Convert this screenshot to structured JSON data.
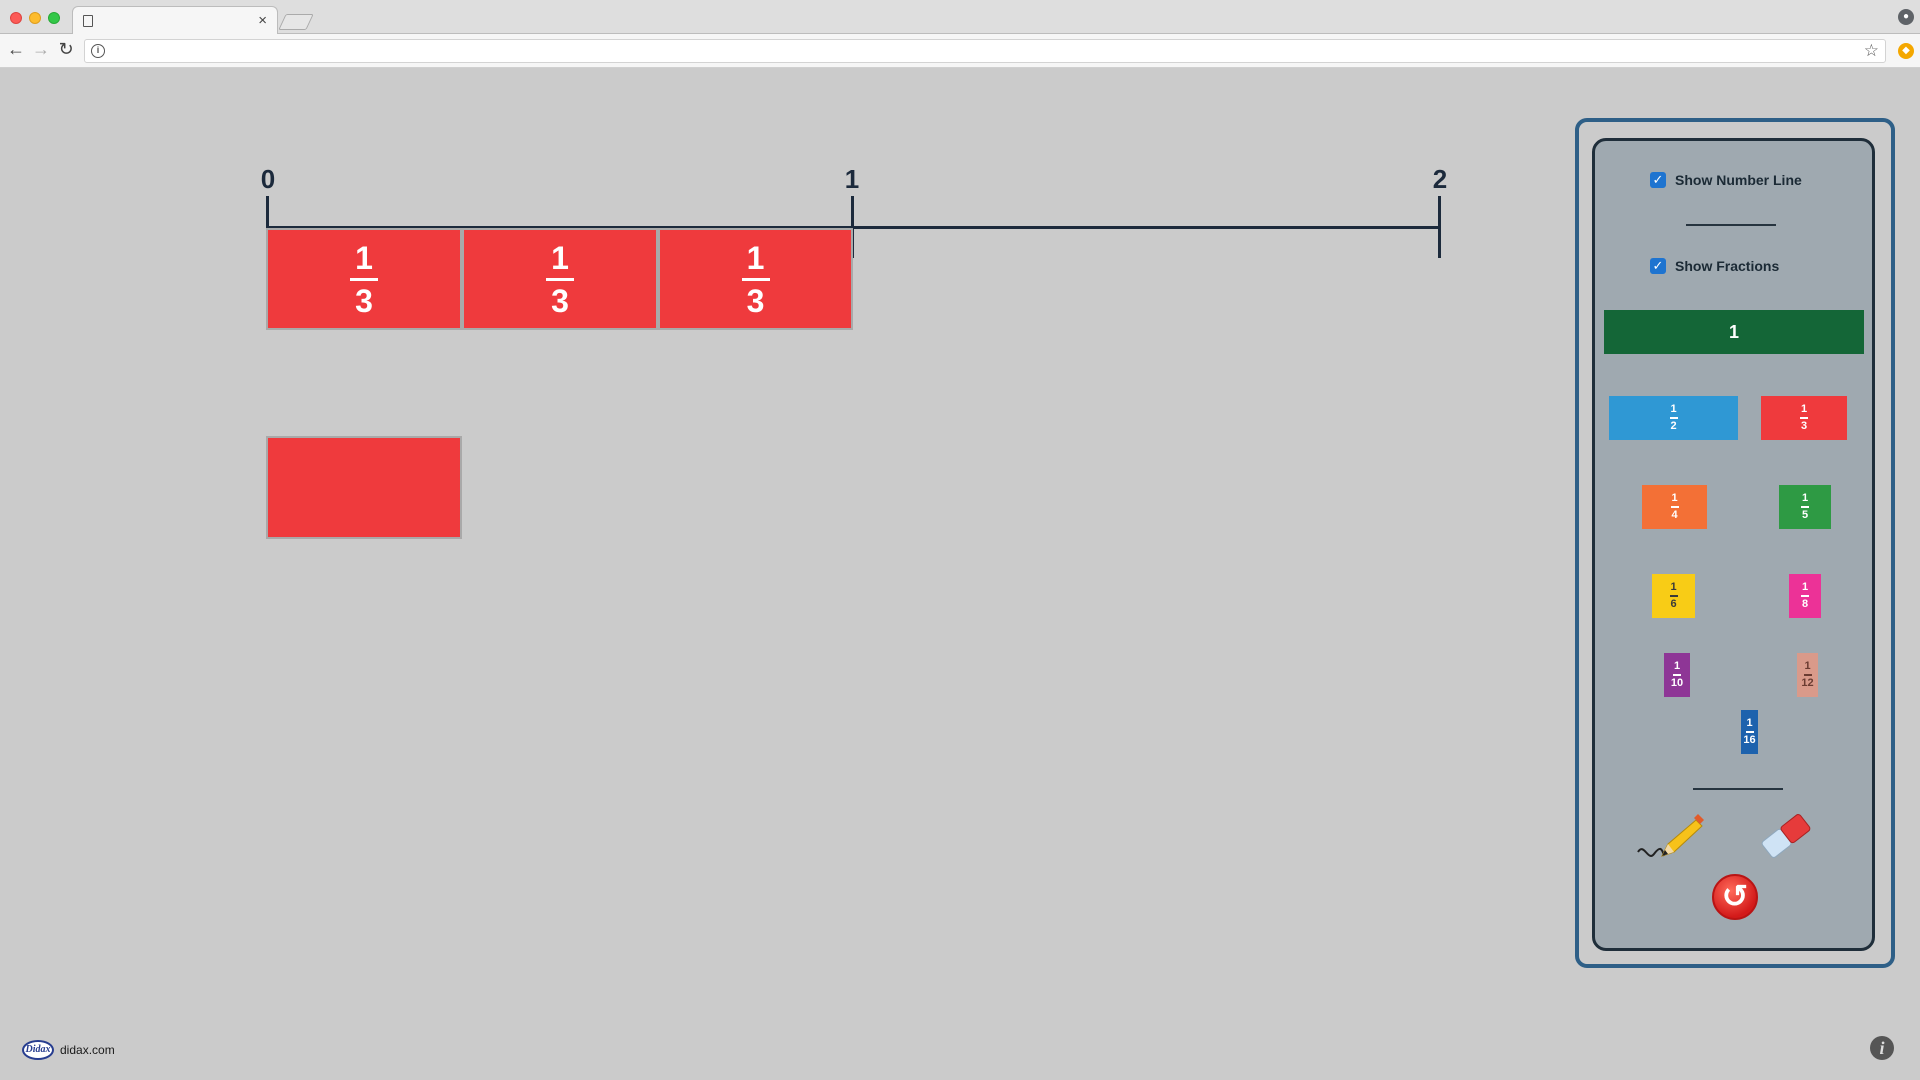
{
  "browser": {
    "close_glyph": "×",
    "icons": [
      "back-icon",
      "forward-icon",
      "reload-icon",
      "info-icon",
      "star-icon",
      "profile-icon",
      "extension-icon"
    ]
  },
  "number_line": {
    "labels": [
      "0",
      "1",
      "2"
    ],
    "placed_pieces": [
      {
        "num": "1",
        "den": "3"
      },
      {
        "num": "1",
        "den": "3"
      },
      {
        "num": "1",
        "den": "3"
      }
    ],
    "unlabeled_piece_color": "#ef3a3d"
  },
  "panel": {
    "show_number_line": "Show Number Line",
    "show_number_line_checked": true,
    "show_fractions": "Show Fractions",
    "show_fractions_checked": true,
    "whole_label": "1",
    "fractions": [
      {
        "num": "1",
        "den": "2",
        "color": "#2f98d4"
      },
      {
        "num": "1",
        "den": "3",
        "color": "#ef3a3d"
      },
      {
        "num": "1",
        "den": "4",
        "color": "#f37036"
      },
      {
        "num": "1",
        "den": "5",
        "color": "#2e9a44"
      },
      {
        "num": "1",
        "den": "6",
        "color": "#f8cc16"
      },
      {
        "num": "1",
        "den": "8",
        "color": "#ec3297"
      },
      {
        "num": "1",
        "den": "10",
        "color": "#8e3696"
      },
      {
        "num": "1",
        "den": "12",
        "color": "#d99a8a"
      },
      {
        "num": "1",
        "den": "16",
        "color": "#1d62ad"
      }
    ],
    "whole_color": "#146637",
    "tools": [
      "pencil-icon",
      "eraser-icon",
      "reset-icon"
    ]
  },
  "footer": {
    "logo_text": "Didax",
    "site": "didax.com",
    "info": "i"
  }
}
